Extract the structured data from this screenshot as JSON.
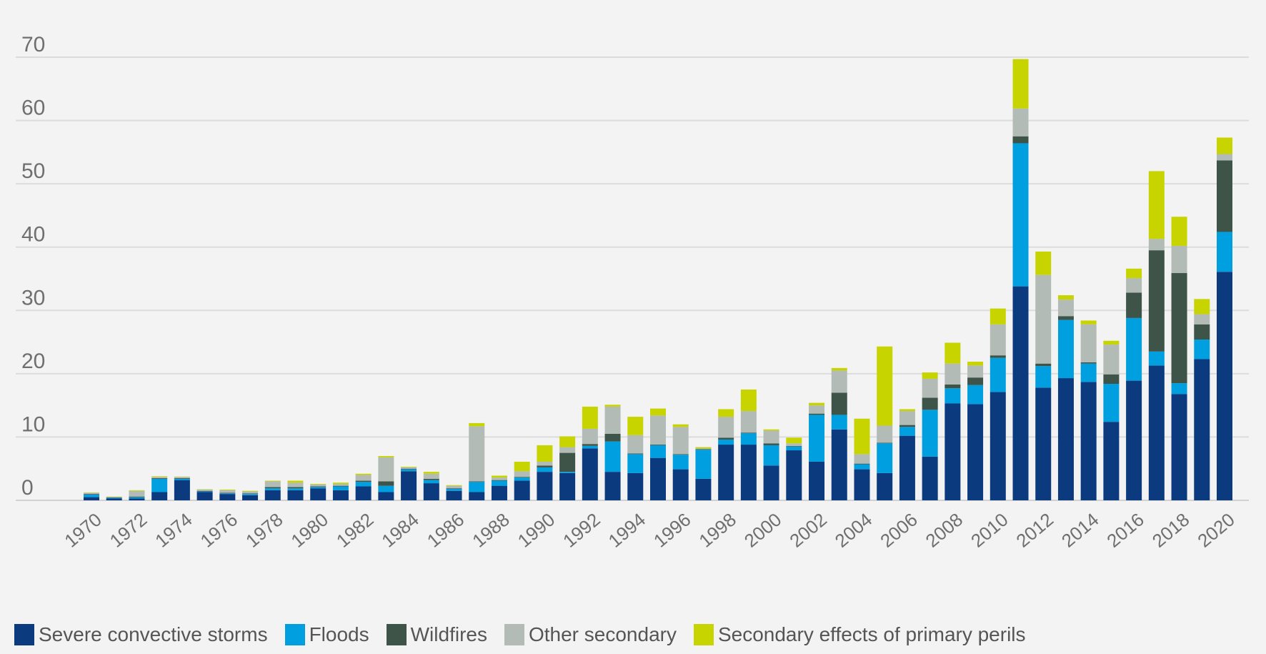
{
  "chart_data": {
    "type": "bar",
    "stacked": true,
    "title": "",
    "xlabel": "",
    "ylabel": "",
    "ylim": [
      0,
      70
    ],
    "yticks": [
      0,
      10,
      20,
      30,
      40,
      50,
      60,
      70
    ],
    "grid": true,
    "legend_position": "bottom-left",
    "categories": [
      "1970",
      "1971",
      "1972",
      "1973",
      "1974",
      "1975",
      "1976",
      "1977",
      "1978",
      "1979",
      "1980",
      "1981",
      "1982",
      "1983",
      "1984",
      "1985",
      "1986",
      "1987",
      "1988",
      "1989",
      "1990",
      "1991",
      "1992",
      "1993",
      "1994",
      "1995",
      "1996",
      "1997",
      "1998",
      "1999",
      "2000",
      "2001",
      "2002",
      "2003",
      "2004",
      "2005",
      "2006",
      "2007",
      "2008",
      "2009",
      "2010",
      "2011",
      "2012",
      "2013",
      "2014",
      "2015",
      "2016",
      "2017",
      "2018",
      "2019",
      "2020"
    ],
    "x_tick_labels": [
      "1970",
      "1972",
      "1974",
      "1976",
      "1978",
      "1980",
      "1982",
      "1984",
      "1986",
      "1988",
      "1990",
      "1992",
      "1994",
      "1996",
      "1998",
      "2000",
      "2002",
      "2004",
      "2006",
      "2008",
      "2010",
      "2012",
      "2014",
      "2016",
      "2018",
      "2020"
    ],
    "series": [
      {
        "name": "Severe convective storms",
        "color": "#0b3a7e",
        "values": [
          0.5,
          0.3,
          0.3,
          1.3,
          3.2,
          1.3,
          1.0,
          0.8,
          1.6,
          1.6,
          1.9,
          1.6,
          2.2,
          1.3,
          4.6,
          2.7,
          1.5,
          1.3,
          2.3,
          3.1,
          4.5,
          4.3,
          8.2,
          4.5,
          4.3,
          6.7,
          4.9,
          3.4,
          8.8,
          8.8,
          5.5,
          7.9,
          6.1,
          11.2,
          4.9,
          4.3,
          10.2,
          6.9,
          15.3,
          15.2,
          17.1,
          33.8,
          17.8,
          19.3,
          18.7,
          12.4,
          18.9,
          21.3,
          16.8,
          22.3,
          36.1
        ]
      },
      {
        "name": "Floods",
        "color": "#009fdf",
        "values": [
          0.4,
          0.1,
          0.2,
          2.1,
          0.2,
          0.1,
          0.1,
          0.2,
          0.3,
          0.3,
          0.2,
          0.6,
          0.7,
          1.0,
          0.3,
          0.5,
          0.3,
          1.6,
          0.8,
          0.5,
          0.7,
          0.2,
          0.4,
          4.8,
          3.0,
          2.0,
          2.3,
          4.6,
          0.8,
          1.8,
          3.2,
          0.6,
          7.4,
          2.3,
          0.8,
          4.7,
          1.4,
          7.4,
          2.4,
          3.0,
          5.4,
          22.6,
          3.4,
          9.2,
          2.9,
          6.0,
          9.9,
          2.2,
          1.7,
          3.1,
          6.3
        ]
      },
      {
        "name": "Wildfires",
        "color": "#3e5449",
        "values": [
          0.1,
          0.05,
          0.1,
          0.1,
          0.1,
          0.1,
          0.1,
          0.1,
          0.2,
          0.2,
          0.1,
          0.1,
          0.2,
          0.7,
          0.1,
          0.2,
          0.1,
          0.1,
          0.1,
          0.1,
          0.3,
          3.0,
          0.3,
          1.2,
          0.1,
          0.1,
          0.1,
          0.1,
          0.3,
          0.1,
          0.3,
          0.1,
          0.2,
          3.5,
          0.1,
          0.1,
          0.3,
          1.9,
          0.6,
          1.2,
          0.4,
          1.1,
          0.4,
          0.6,
          0.2,
          1.5,
          4.0,
          16.0,
          17.4,
          2.4,
          11.3
        ]
      },
      {
        "name": "Other secondary",
        "color": "#b2bbb6",
        "values": [
          0.2,
          0.1,
          0.9,
          0.2,
          0.2,
          0.2,
          0.4,
          0.3,
          0.9,
          0.7,
          0.3,
          0.3,
          0.9,
          3.8,
          0.2,
          0.8,
          0.4,
          8.7,
          0.4,
          0.9,
          0.6,
          0.9,
          2.4,
          4.3,
          2.9,
          4.6,
          4.3,
          0.1,
          3.3,
          3.4,
          2.0,
          0.4,
          1.3,
          3.5,
          1.5,
          2.7,
          2.2,
          3.0,
          3.3,
          1.9,
          4.9,
          4.4,
          14.0,
          2.6,
          6.0,
          4.7,
          2.3,
          1.8,
          4.3,
          1.6,
          1.0
        ]
      },
      {
        "name": "Secondary effects of primary perils",
        "color": "#c8d400",
        "values": [
          0.05,
          0.05,
          0.1,
          0.1,
          0.05,
          0.05,
          0.1,
          0.1,
          0.1,
          0.3,
          0.1,
          0.2,
          0.2,
          0.2,
          0.1,
          0.3,
          0.1,
          0.5,
          0.3,
          1.5,
          2.6,
          1.7,
          3.5,
          0.3,
          2.9,
          1.1,
          0.4,
          0.2,
          1.2,
          3.4,
          0.2,
          0.9,
          0.4,
          0.4,
          5.6,
          12.5,
          0.3,
          1.0,
          3.3,
          0.6,
          2.5,
          7.8,
          3.7,
          0.7,
          0.6,
          0.6,
          1.5,
          10.7,
          4.6,
          2.4,
          2.6
        ]
      }
    ]
  }
}
